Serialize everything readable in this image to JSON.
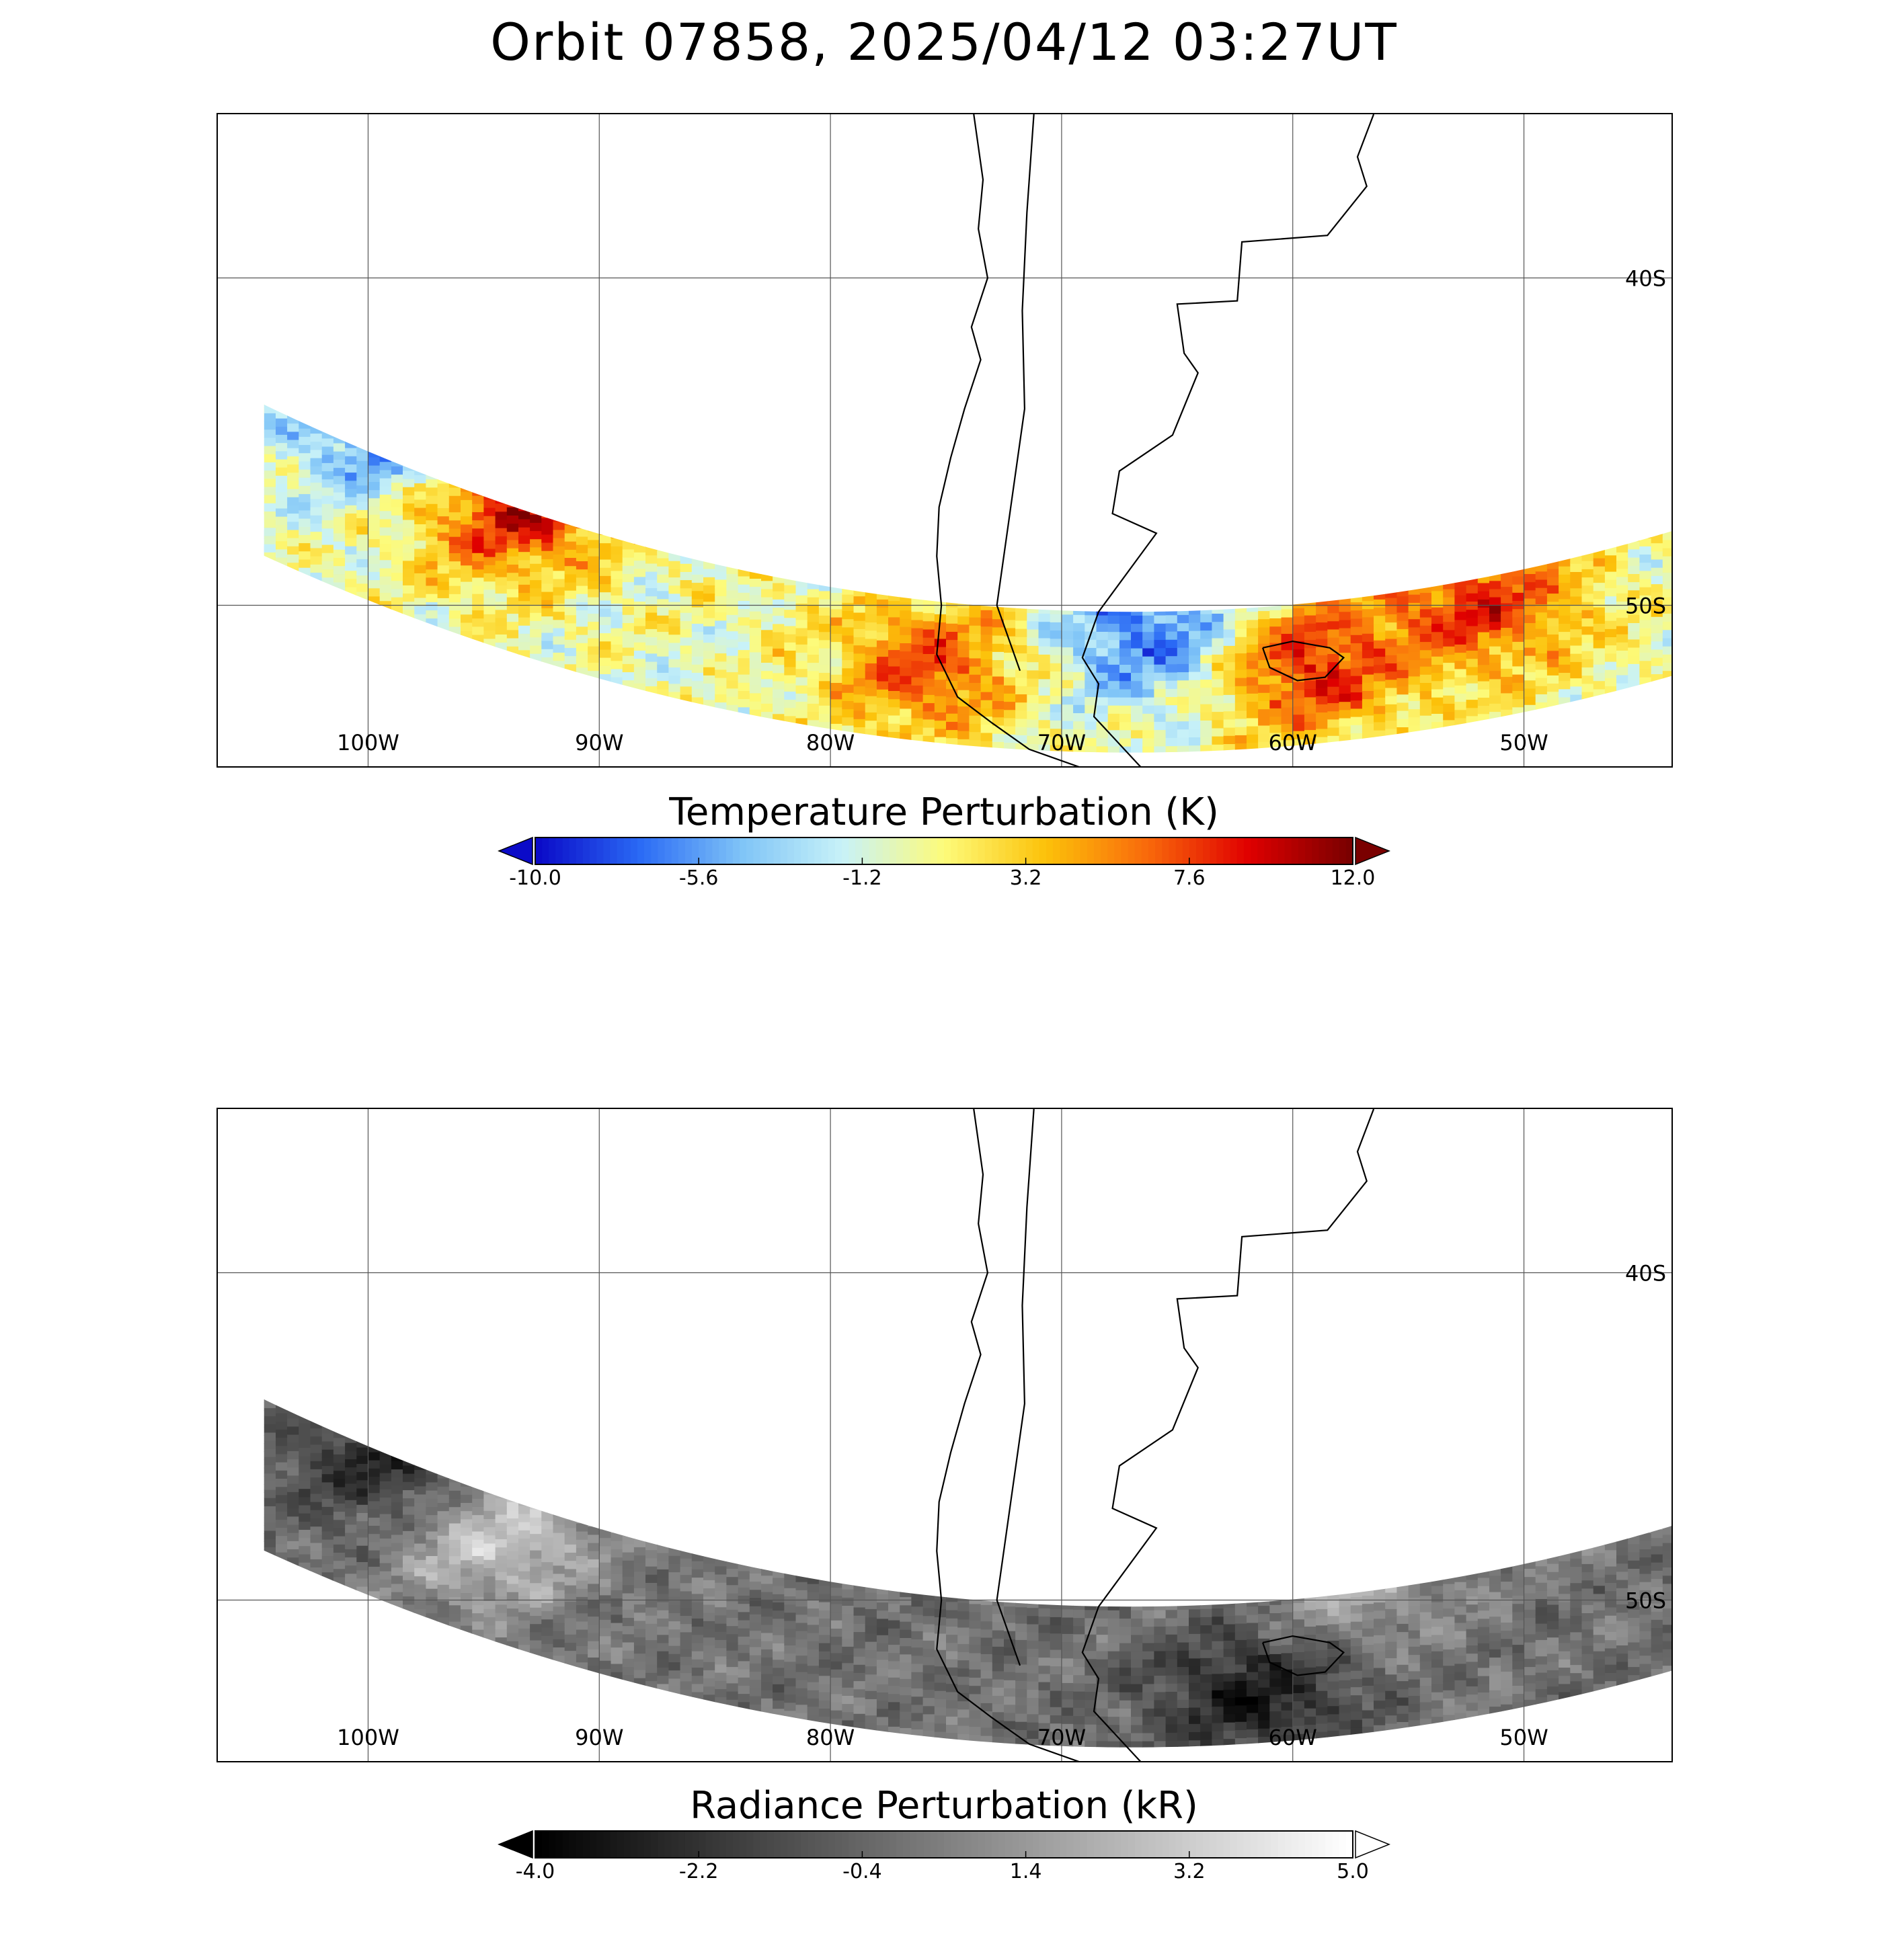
{
  "title": "Orbit 07858, 2025/04/12 03:27UT",
  "chart_data": [
    {
      "type": "heatmap",
      "id": "temperature-panel",
      "subtitle": "",
      "colorbar_label": "Temperature Perturbation (K)",
      "colorbar_ticks": [
        "-10.0",
        "-5.6",
        "-1.2",
        "3.2",
        "7.6",
        "12.0"
      ],
      "value_range": [
        -10.0,
        12.0
      ],
      "colormap": [
        "#0b0bc8",
        "#2a6af5",
        "#7fc4f7",
        "#c8f2f8",
        "#fdfb7a",
        "#fcc20a",
        "#f96a0b",
        "#e00000",
        "#7a0000"
      ],
      "xlabel": "",
      "ylabel": "",
      "x_tick_labels": [
        "100W",
        "90W",
        "80W",
        "70W",
        "60W",
        "50W"
      ],
      "x_ticks": [
        -100,
        -90,
        -80,
        -70,
        -60,
        -50
      ],
      "y_tick_labels": [
        "40S",
        "50S"
      ],
      "y_ticks": [
        -40,
        -50
      ],
      "xlim": [
        -106.5,
        -43.5
      ],
      "ylim": [
        -55,
        -35
      ],
      "grid": true,
      "features": [
        {
          "name": "warm patch west",
          "lon": -94,
          "lat": -47,
          "value": 10
        },
        {
          "name": "cold patch far west",
          "lon": -99,
          "lat": -45,
          "value": -7
        },
        {
          "name": "warm patch south andes",
          "lon": -76,
          "lat": -52,
          "value": 7
        },
        {
          "name": "cold band east of andes",
          "lon": -66,
          "lat": -51,
          "value": -8
        },
        {
          "name": "warm patch falklands",
          "lon": -60,
          "lat": -52,
          "value": 9
        },
        {
          "name": "warm patch east",
          "lon": -52,
          "lat": -50,
          "value": 8
        }
      ]
    },
    {
      "type": "heatmap",
      "id": "radiance-panel",
      "subtitle": "",
      "colorbar_label": "Radiance Perturbation (kR)",
      "colorbar_ticks": [
        "-4.0",
        "-2.2",
        "-0.4",
        "1.4",
        "3.2",
        "5.0"
      ],
      "value_range": [
        -4.0,
        5.0
      ],
      "colormap": [
        "#000000",
        "#ffffff"
      ],
      "xlabel": "",
      "ylabel": "",
      "x_tick_labels": [
        "100W",
        "90W",
        "80W",
        "70W",
        "60W",
        "50W"
      ],
      "x_ticks": [
        -100,
        -90,
        -80,
        -70,
        -60,
        -50
      ],
      "y_tick_labels": [
        "40S",
        "50S"
      ],
      "y_ticks": [
        -40,
        -50
      ],
      "xlim": [
        -106.5,
        -43.5
      ],
      "ylim": [
        -55,
        -35
      ],
      "grid": true,
      "features": [
        {
          "name": "dark patch west",
          "lon": -99,
          "lat": -46,
          "value": -3.2
        },
        {
          "name": "bright patch west",
          "lon": -95,
          "lat": -48,
          "value": 3.5
        },
        {
          "name": "dark patch falklands",
          "lon": -62,
          "lat": -53,
          "value": -3.0
        },
        {
          "name": "bright patch north-east",
          "lon": -58,
          "lat": -49,
          "value": 2.5
        }
      ]
    }
  ]
}
